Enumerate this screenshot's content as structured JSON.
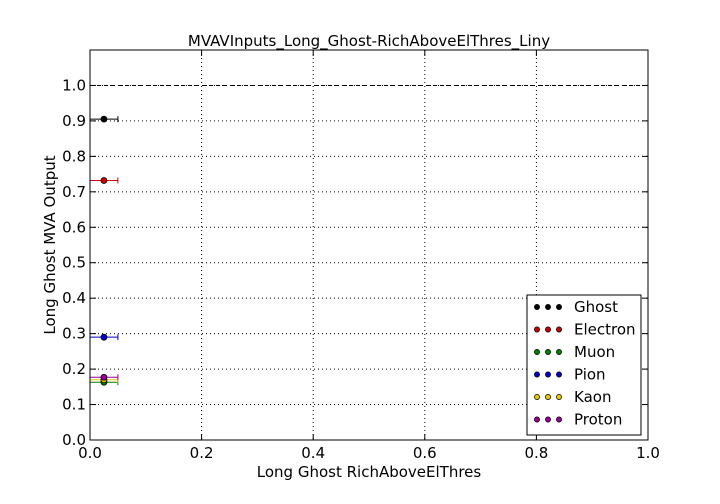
{
  "chart_data": {
    "type": "scatter",
    "title": "MVAVInputs_Long_Ghost-RichAboveElThres_Liny",
    "xlabel": "Long Ghost RichAboveElThres",
    "ylabel": "Long Ghost MVA Output",
    "xlim": [
      0.0,
      1.0
    ],
    "ylim": [
      0.0,
      1.1
    ],
    "xticks": [
      "0.0",
      "0.2",
      "0.4",
      "0.6",
      "0.8",
      "1.0"
    ],
    "yticks": [
      "0.0",
      "0.1",
      "0.2",
      "0.3",
      "0.4",
      "0.5",
      "0.6",
      "0.7",
      "0.8",
      "0.9",
      "1.0"
    ],
    "grid": true,
    "reference_line_y": 1.0,
    "legend_position": "lower-right",
    "series": [
      {
        "name": "Ghost",
        "color": "#000000",
        "x": [
          0.025
        ],
        "y": [
          0.905
        ],
        "xerr": [
          0.025
        ]
      },
      {
        "name": "Electron",
        "color": "#cc0000",
        "x": [
          0.025
        ],
        "y": [
          0.732
        ],
        "xerr": [
          0.025
        ]
      },
      {
        "name": "Muon",
        "color": "#008000",
        "x": [
          0.025
        ],
        "y": [
          0.163
        ],
        "xerr": [
          0.025
        ]
      },
      {
        "name": "Pion",
        "color": "#0000cc",
        "x": [
          0.025
        ],
        "y": [
          0.29
        ],
        "xerr": [
          0.025
        ]
      },
      {
        "name": "Kaon",
        "color": "#e6c800",
        "x": [
          0.025
        ],
        "y": [
          0.17
        ],
        "xerr": [
          0.025
        ]
      },
      {
        "name": "Proton",
        "color": "#990099",
        "x": [
          0.025
        ],
        "y": [
          0.177
        ],
        "xerr": [
          0.025
        ]
      }
    ]
  }
}
